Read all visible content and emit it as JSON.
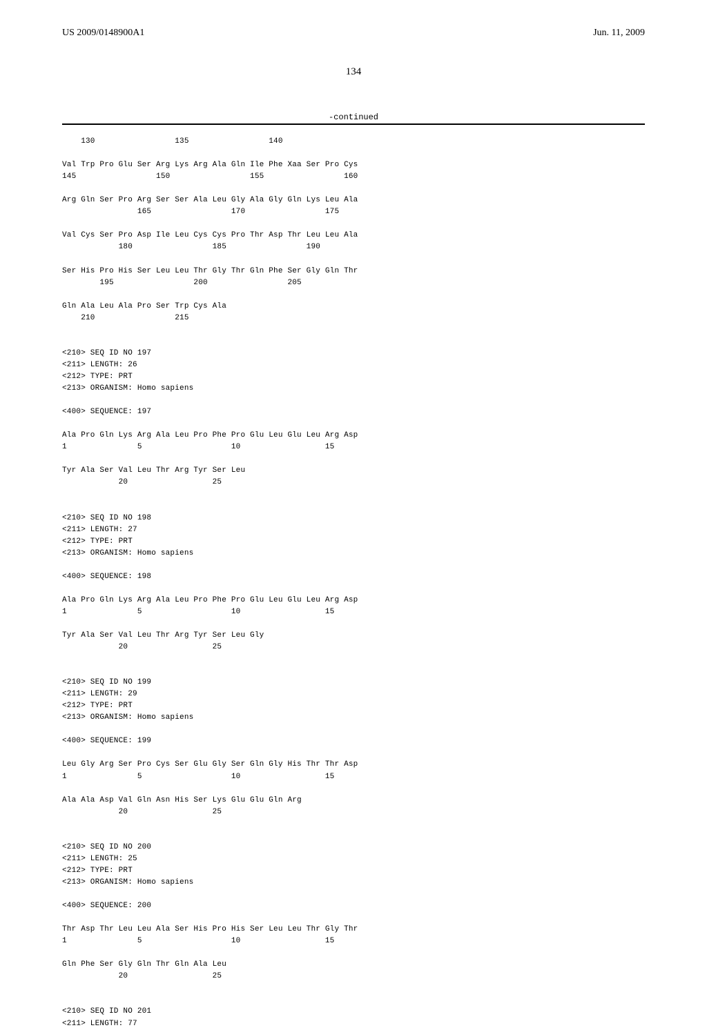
{
  "header": {
    "publication_number": "US 2009/0148900A1",
    "publication_date": "Jun. 11, 2009"
  },
  "page_number": "134",
  "continued_label": "-continued",
  "sequence_text": "    130                 135                 140\n\nVal Trp Pro Glu Ser Arg Lys Arg Ala Gln Ile Phe Xaa Ser Pro Cys\n145                 150                 155                 160\n\nArg Gln Ser Pro Arg Ser Ser Ala Leu Gly Ala Gly Gln Lys Leu Ala\n                165                 170                 175\n\nVal Cys Ser Pro Asp Ile Leu Cys Cys Pro Thr Asp Thr Leu Leu Ala\n            180                 185                 190\n\nSer His Pro His Ser Leu Leu Thr Gly Thr Gln Phe Ser Gly Gln Thr\n        195                 200                 205\n\nGln Ala Leu Ala Pro Ser Trp Cys Ala\n    210                 215\n\n\n<210> SEQ ID NO 197\n<211> LENGTH: 26\n<212> TYPE: PRT\n<213> ORGANISM: Homo sapiens\n\n<400> SEQUENCE: 197\n\nAla Pro Gln Lys Arg Ala Leu Pro Phe Pro Glu Leu Glu Leu Arg Asp\n1               5                   10                  15\n\nTyr Ala Ser Val Leu Thr Arg Tyr Ser Leu\n            20                  25\n\n\n<210> SEQ ID NO 198\n<211> LENGTH: 27\n<212> TYPE: PRT\n<213> ORGANISM: Homo sapiens\n\n<400> SEQUENCE: 198\n\nAla Pro Gln Lys Arg Ala Leu Pro Phe Pro Glu Leu Glu Leu Arg Asp\n1               5                   10                  15\n\nTyr Ala Ser Val Leu Thr Arg Tyr Ser Leu Gly\n            20                  25\n\n\n<210> SEQ ID NO 199\n<211> LENGTH: 29\n<212> TYPE: PRT\n<213> ORGANISM: Homo sapiens\n\n<400> SEQUENCE: 199\n\nLeu Gly Arg Ser Pro Cys Ser Glu Gly Ser Gln Gly His Thr Thr Asp\n1               5                   10                  15\n\nAla Ala Asp Val Gln Asn His Ser Lys Glu Glu Gln Arg\n            20                  25\n\n\n<210> SEQ ID NO 200\n<211> LENGTH: 25\n<212> TYPE: PRT\n<213> ORGANISM: Homo sapiens\n\n<400> SEQUENCE: 200\n\nThr Asp Thr Leu Leu Ala Ser His Pro His Ser Leu Leu Thr Gly Thr\n1               5                   10                  15\n\nGln Phe Ser Gly Gln Thr Gln Ala Leu\n            20                  25\n\n\n<210> SEQ ID NO 201\n<211> LENGTH: 77"
}
